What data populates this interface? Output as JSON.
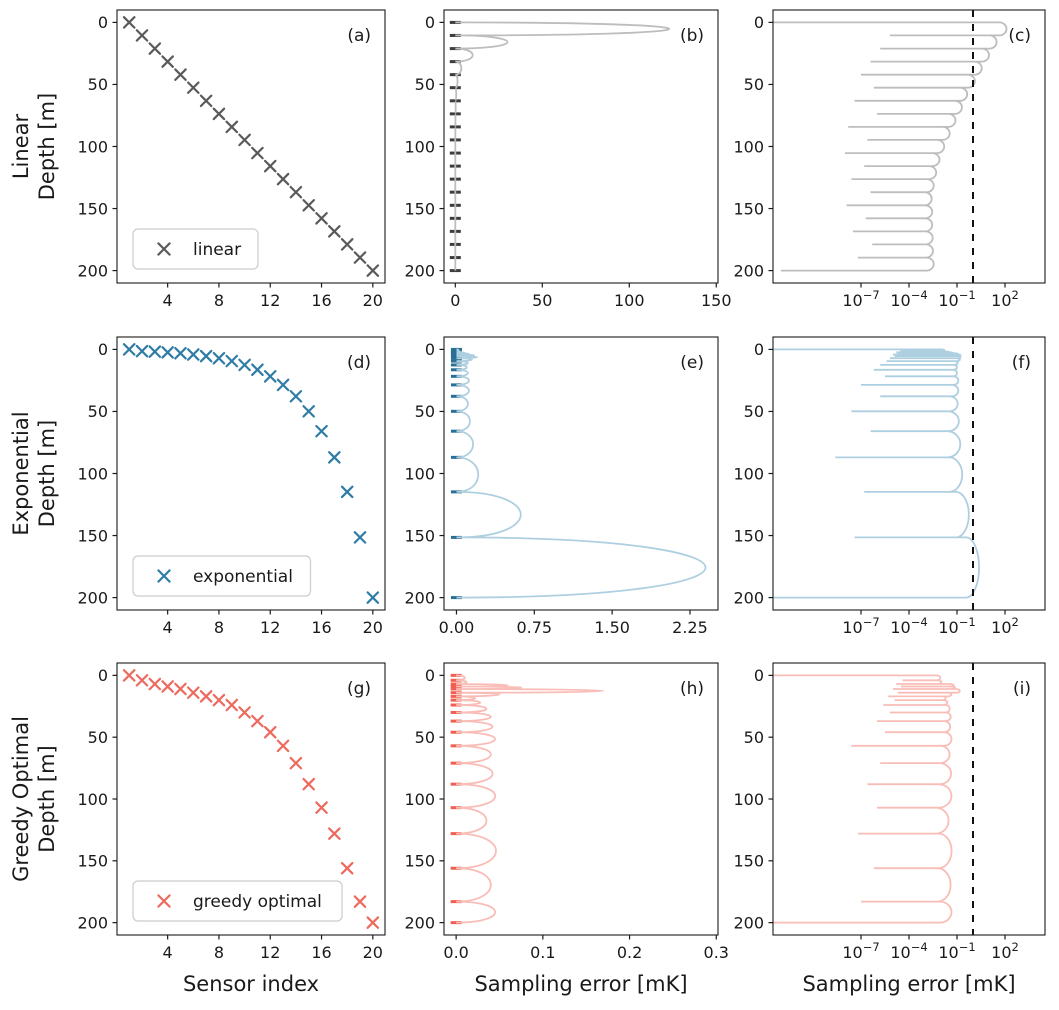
{
  "chart_data": {
    "type": "line",
    "figure_kind": "3x3-multipanel-matplotlib",
    "ylabel": "Depth [m]",
    "yticks": [
      0,
      50,
      100,
      150,
      200
    ],
    "ylim": [
      -10,
      210
    ],
    "xlabel_scatter": "Sensor index",
    "xlabel_error": "Sampling error [mK]",
    "threshold_mk": 1,
    "threshold_line_color": "#111111",
    "spine_color": "#1a1a1a",
    "sensor_index": [
      1,
      2,
      3,
      4,
      5,
      6,
      7,
      8,
      9,
      10,
      11,
      12,
      13,
      14,
      15,
      16,
      17,
      18,
      19,
      20
    ],
    "rows": [
      {
        "label": "Linear",
        "legend": "linear",
        "marker_color": "#5a5a5a",
        "label_color": "#8c8c8c",
        "curve_color": "#bdbdbd",
        "dash_color": "#3d3d3d",
        "depths": [
          0,
          10.5,
          21.1,
          31.6,
          42.1,
          52.6,
          63.2,
          73.7,
          84.2,
          94.7,
          105.3,
          115.8,
          126.3,
          136.8,
          147.4,
          157.9,
          168.4,
          178.9,
          189.5,
          200
        ],
        "lobe_peaks_mk": [
          123,
          30,
          10,
          3.5,
          1.3,
          0.5,
          0.2,
          0.08,
          0.035,
          0.016,
          0.008,
          0.005,
          0.0035,
          0.003,
          0.0028,
          0.0028,
          0.003,
          0.0032,
          0.0035
        ],
        "cusp_log10_mk": [
          -12.5,
          -5.2,
          -5.8,
          -6.4,
          -7.0,
          -6.2,
          -7.4,
          -6.0,
          -7.8,
          -6.6,
          -8.0,
          -6.8,
          -7.6,
          -6.4,
          -7.9,
          -6.7,
          -7.5,
          -6.3,
          -7.2,
          -12.0
        ]
      },
      {
        "label": "Exponential",
        "legend": "exponential",
        "marker_color": "#2f7da6",
        "label_color": "#2f7da6",
        "curve_color": "#aecfe0",
        "dash_color": "#2a6f95",
        "depths": [
          0,
          1.4,
          1.8,
          2.4,
          3.1,
          4.1,
          5.4,
          7.1,
          9.4,
          12.5,
          16.4,
          21.7,
          28.6,
          37.8,
          49.9,
          65.9,
          87.0,
          114.8,
          151.5,
          200
        ],
        "lobe_peaks_mk": [
          0.02,
          0.03,
          0.05,
          0.08,
          0.12,
          0.17,
          0.2,
          0.15,
          0.11,
          0.1,
          0.11,
          0.12,
          0.12,
          0.11,
          0.13,
          0.16,
          0.21,
          0.62,
          2.4
        ],
        "cusp_log10_mk": [
          -13,
          -4.5,
          -4.6,
          -4.8,
          -4.7,
          -5.0,
          -4.9,
          -5.2,
          -5.4,
          -5.8,
          -6.2,
          -5.5,
          -7.0,
          -5.8,
          -7.6,
          -6.4,
          -8.6,
          -6.8,
          -7.4,
          -12.5
        ]
      },
      {
        "label": "Greedy Optimal",
        "legend": "greedy optimal",
        "marker_color": "#ed6a5f",
        "label_color": "#ed6a5f",
        "curve_color": "#f9bdb7",
        "dash_color": "#ef5f52",
        "depths": [
          0,
          4,
          7,
          9,
          11,
          14,
          17,
          20,
          24,
          30,
          37,
          46,
          57,
          71,
          88,
          107,
          128,
          156,
          183,
          200
        ],
        "lobe_peaks_mk": [
          0.01,
          0.012,
          0.06,
          0.075,
          0.17,
          0.05,
          0.022,
          0.028,
          0.035,
          0.04,
          0.042,
          0.045,
          0.04,
          0.042,
          0.045,
          0.035,
          0.046,
          0.04,
          0.045
        ],
        "cusp_log10_mk": [
          -12.8,
          -4.4,
          -4.8,
          -4.5,
          -5.0,
          -4.7,
          -5.3,
          -4.9,
          -5.6,
          -5.2,
          -6.0,
          -5.5,
          -7.6,
          -5.8,
          -6.6,
          -6.0,
          -7.2,
          -6.2,
          -7.0,
          -12.6
        ]
      }
    ],
    "panels": [
      {
        "id": "a",
        "letter": "(a)",
        "row": 0,
        "col": 0,
        "kind": "scatter",
        "xlim": [
          0.05,
          20.95
        ],
        "xticks": [
          4,
          8,
          12,
          16,
          20
        ],
        "xtick_labels": [
          "4",
          "8",
          "12",
          "16",
          "20"
        ]
      },
      {
        "id": "b",
        "letter": "(b)",
        "row": 0,
        "col": 1,
        "kind": "error-linear",
        "xlim": [
          -6.5,
          151
        ],
        "xticks": [
          0,
          50,
          100,
          150
        ],
        "xtick_labels": [
          "0",
          "50",
          "100",
          "150"
        ]
      },
      {
        "id": "c",
        "letter": "(c)",
        "row": 0,
        "col": 2,
        "kind": "error-log",
        "xlim_log10": [
          -12.5,
          4.5
        ],
        "xtick_exponents": [
          -7,
          -4,
          -1,
          2
        ]
      },
      {
        "id": "d",
        "letter": "(d)",
        "row": 1,
        "col": 0,
        "kind": "scatter",
        "xlim": [
          0.05,
          20.95
        ],
        "xticks": [
          4,
          8,
          12,
          16,
          20
        ],
        "xtick_labels": [
          "4",
          "8",
          "12",
          "16",
          "20"
        ]
      },
      {
        "id": "e",
        "letter": "(e)",
        "row": 1,
        "col": 1,
        "kind": "error-linear",
        "xlim": [
          -0.12,
          2.52
        ],
        "xticks": [
          0,
          0.75,
          1.5,
          2.25
        ],
        "xtick_labels": [
          "0.00",
          "0.75",
          "1.50",
          "2.25"
        ]
      },
      {
        "id": "f",
        "letter": "(f)",
        "row": 1,
        "col": 2,
        "kind": "error-log",
        "xlim_log10": [
          -12.5,
          4.5
        ],
        "xtick_exponents": [
          -7,
          -4,
          -1,
          2
        ]
      },
      {
        "id": "g",
        "letter": "(g)",
        "row": 2,
        "col": 0,
        "kind": "scatter",
        "xlim": [
          0.05,
          20.95
        ],
        "xticks": [
          4,
          8,
          12,
          16,
          20
        ],
        "xtick_labels": [
          "4",
          "8",
          "12",
          "16",
          "20"
        ],
        "xlabel": "Sensor index"
      },
      {
        "id": "h",
        "letter": "(h)",
        "row": 2,
        "col": 1,
        "kind": "error-linear",
        "xlim": [
          -0.014,
          0.302
        ],
        "xticks": [
          0,
          0.1,
          0.2,
          0.3
        ],
        "xtick_labels": [
          "0.0",
          "0.1",
          "0.2",
          "0.3"
        ],
        "xlabel": "Sampling error [mK]"
      },
      {
        "id": "i",
        "letter": "(i)",
        "row": 2,
        "col": 2,
        "kind": "error-log",
        "xlim_log10": [
          -12.5,
          4.5
        ],
        "xtick_exponents": [
          -7,
          -4,
          -1,
          2
        ],
        "xlabel": "Sampling error [mK]"
      }
    ]
  }
}
